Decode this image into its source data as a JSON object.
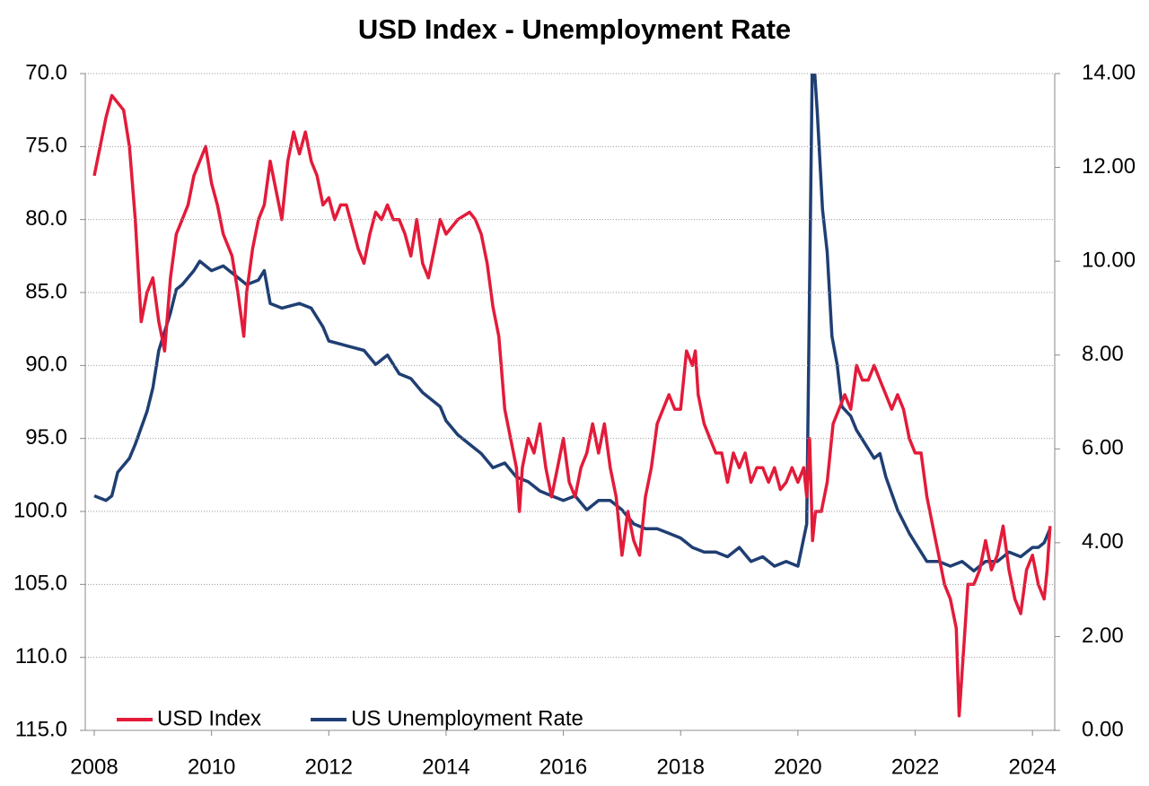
{
  "chart_data": {
    "type": "line",
    "title": "USD Index - Unemployment Rate",
    "xlim": [
      2007.847,
      2024.38
    ],
    "xticks": [
      2008,
      2010,
      2012,
      2014,
      2016,
      2018,
      2020,
      2022,
      2024
    ],
    "ylim": [
      70,
      115
    ],
    "y_inverted": true,
    "yticks": [
      {
        "value": 70,
        "label": "70.0"
      },
      {
        "value": 75,
        "label": "75.0"
      },
      {
        "value": 80,
        "label": "80.0"
      },
      {
        "value": 85,
        "label": "85.0"
      },
      {
        "value": 90,
        "label": "90.0"
      },
      {
        "value": 95,
        "label": "95.0"
      },
      {
        "value": 100,
        "label": "100.0"
      },
      {
        "value": 105,
        "label": "105.0"
      },
      {
        "value": 110,
        "label": "110.0"
      },
      {
        "value": 115,
        "label": "115.0"
      }
    ],
    "y2lim": [
      0,
      14
    ],
    "y2ticks": [
      {
        "value": 0,
        "label": "0.00"
      },
      {
        "value": 2,
        "label": "2.00"
      },
      {
        "value": 4,
        "label": "4.00"
      },
      {
        "value": 6,
        "label": "6.00"
      },
      {
        "value": 8,
        "label": "8.00"
      },
      {
        "value": 10,
        "label": "10.00"
      },
      {
        "value": 12,
        "label": "12.00"
      },
      {
        "value": 14,
        "label": "14.00"
      }
    ],
    "grid": true,
    "legend": "bottom-left",
    "series": [
      {
        "name": "USD Index",
        "color": "#e31b3a",
        "x": [
          2008.0,
          2008.2,
          2008.3,
          2008.5,
          2008.6,
          2008.7,
          2008.8,
          2008.9,
          2009.0,
          2009.1,
          2009.2,
          2009.3,
          2009.4,
          2009.5,
          2009.6,
          2009.7,
          2009.9,
          2010.0,
          2010.1,
          2010.2,
          2010.35,
          2010.45,
          2010.55,
          2010.6,
          2010.7,
          2010.8,
          2010.9,
          2011.0,
          2011.1,
          2011.2,
          2011.3,
          2011.4,
          2011.5,
          2011.6,
          2011.7,
          2011.8,
          2011.9,
          2012.0,
          2012.1,
          2012.2,
          2012.3,
          2012.5,
          2012.6,
          2012.7,
          2012.8,
          2012.9,
          2013.0,
          2013.1,
          2013.2,
          2013.3,
          2013.4,
          2013.5,
          2013.6,
          2013.7,
          2013.8,
          2013.9,
          2014.0,
          2014.2,
          2014.4,
          2014.5,
          2014.6,
          2014.7,
          2014.8,
          2014.9,
          2015.0,
          2015.1,
          2015.2,
          2015.25,
          2015.3,
          2015.4,
          2015.5,
          2015.6,
          2015.7,
          2015.8,
          2015.9,
          2016.0,
          2016.1,
          2016.2,
          2016.3,
          2016.4,
          2016.5,
          2016.6,
          2016.7,
          2016.8,
          2016.9,
          2017.0,
          2017.1,
          2017.2,
          2017.3,
          2017.4,
          2017.5,
          2017.6,
          2017.7,
          2017.8,
          2017.9,
          2018.0,
          2018.1,
          2018.2,
          2018.25,
          2018.3,
          2018.4,
          2018.5,
          2018.6,
          2018.7,
          2018.8,
          2018.9,
          2019.0,
          2019.1,
          2019.2,
          2019.3,
          2019.4,
          2019.5,
          2019.6,
          2019.7,
          2019.8,
          2019.9,
          2020.0,
          2020.1,
          2020.15,
          2020.2,
          2020.25,
          2020.3,
          2020.4,
          2020.5,
          2020.55,
          2020.6,
          2020.7,
          2020.8,
          2020.9,
          2021.0,
          2021.1,
          2021.2,
          2021.3,
          2021.4,
          2021.5,
          2021.6,
          2021.7,
          2021.8,
          2021.9,
          2022.0,
          2022.1,
          2022.2,
          2022.3,
          2022.4,
          2022.5,
          2022.6,
          2022.7,
          2022.75,
          2022.8,
          2022.85,
          2022.9,
          2023.0,
          2023.1,
          2023.2,
          2023.3,
          2023.4,
          2023.5,
          2023.6,
          2023.7,
          2023.8,
          2023.9,
          2024.0,
          2024.1,
          2024.2,
          2024.25,
          2024.3
        ],
        "values": [
          77,
          73,
          71.5,
          72.5,
          75,
          80,
          87,
          85,
          84,
          87,
          89,
          84,
          81,
          80,
          79,
          77,
          75,
          77.5,
          79,
          81,
          82.5,
          85,
          88,
          85,
          82,
          80,
          79,
          76,
          78,
          80,
          76,
          74,
          75.5,
          74,
          76,
          77,
          79,
          78.5,
          80,
          79,
          79,
          82,
          83,
          81,
          79.5,
          80,
          79,
          80,
          80,
          81,
          82.5,
          80,
          83,
          84,
          82,
          80,
          81,
          80,
          79.5,
          80,
          81,
          83,
          86,
          88,
          93,
          95,
          97,
          100,
          97,
          95,
          96,
          94,
          97,
          99,
          97,
          95,
          98,
          99,
          97,
          96,
          94,
          96,
          94,
          97,
          99,
          103,
          100,
          102,
          103,
          99,
          97,
          94,
          93,
          92,
          93,
          93,
          89,
          90,
          89,
          92,
          94,
          95,
          96,
          96,
          98,
          96,
          97,
          96,
          98,
          97,
          97,
          98,
          97,
          98.5,
          98,
          97,
          98,
          97,
          99,
          95,
          102,
          100,
          100,
          98,
          96,
          94,
          93,
          92,
          93,
          90,
          91,
          91,
          90,
          91,
          92,
          93,
          92,
          93,
          95,
          96,
          96,
          99,
          101,
          103,
          105,
          106,
          108,
          114,
          111,
          108,
          105,
          105,
          104,
          102,
          104,
          103,
          101,
          104,
          106,
          107,
          104,
          103,
          105,
          106,
          104,
          101
        ]
      },
      {
        "name": "US Unemployment Rate",
        "color": "#1f3f73",
        "axis": "y2",
        "x": [
          2008.0,
          2008.2,
          2008.3,
          2008.4,
          2008.6,
          2008.7,
          2008.9,
          2009.0,
          2009.1,
          2009.3,
          2009.4,
          2009.5,
          2009.7,
          2009.8,
          2010.0,
          2010.2,
          2010.4,
          2010.6,
          2010.8,
          2010.9,
          2011.0,
          2011.2,
          2011.5,
          2011.7,
          2011.9,
          2012.0,
          2012.3,
          2012.6,
          2012.8,
          2013.0,
          2013.2,
          2013.4,
          2013.6,
          2013.9,
          2014.0,
          2014.2,
          2014.4,
          2014.6,
          2014.8,
          2015.0,
          2015.2,
          2015.4,
          2015.6,
          2015.8,
          2016.0,
          2016.2,
          2016.4,
          2016.6,
          2016.8,
          2017.0,
          2017.2,
          2017.4,
          2017.6,
          2017.8,
          2018.0,
          2018.2,
          2018.4,
          2018.6,
          2018.8,
          2019.0,
          2019.2,
          2019.4,
          2019.6,
          2019.8,
          2020.0,
          2020.15,
          2020.25,
          2020.33,
          2020.42,
          2020.5,
          2020.58,
          2020.67,
          2020.75,
          2020.9,
          2021.0,
          2021.2,
          2021.3,
          2021.4,
          2021.5,
          2021.7,
          2021.9,
          2022.0,
          2022.2,
          2022.4,
          2022.6,
          2022.8,
          2023.0,
          2023.2,
          2023.4,
          2023.6,
          2023.8,
          2024.0,
          2024.1,
          2024.2,
          2024.3
        ],
        "values": [
          5.0,
          4.9,
          5.0,
          5.5,
          5.8,
          6.1,
          6.8,
          7.3,
          8.1,
          8.9,
          9.4,
          9.5,
          9.8,
          10.0,
          9.8,
          9.9,
          9.7,
          9.5,
          9.6,
          9.8,
          9.1,
          9.0,
          9.1,
          9.0,
          8.6,
          8.3,
          8.2,
          8.1,
          7.8,
          8.0,
          7.6,
          7.5,
          7.2,
          6.9,
          6.6,
          6.3,
          6.1,
          5.9,
          5.6,
          5.7,
          5.4,
          5.3,
          5.1,
          5.0,
          4.9,
          5.0,
          4.7,
          4.9,
          4.9,
          4.7,
          4.4,
          4.3,
          4.3,
          4.2,
          4.1,
          3.9,
          3.8,
          3.8,
          3.7,
          3.9,
          3.6,
          3.7,
          3.5,
          3.6,
          3.5,
          4.4,
          14.7,
          13.2,
          11.1,
          10.2,
          8.4,
          7.8,
          6.9,
          6.7,
          6.4,
          6.0,
          5.8,
          5.9,
          5.4,
          4.7,
          4.2,
          4.0,
          3.6,
          3.6,
          3.5,
          3.6,
          3.4,
          3.6,
          3.6,
          3.8,
          3.7,
          3.9,
          3.9,
          4.0,
          4.3
        ]
      }
    ]
  }
}
